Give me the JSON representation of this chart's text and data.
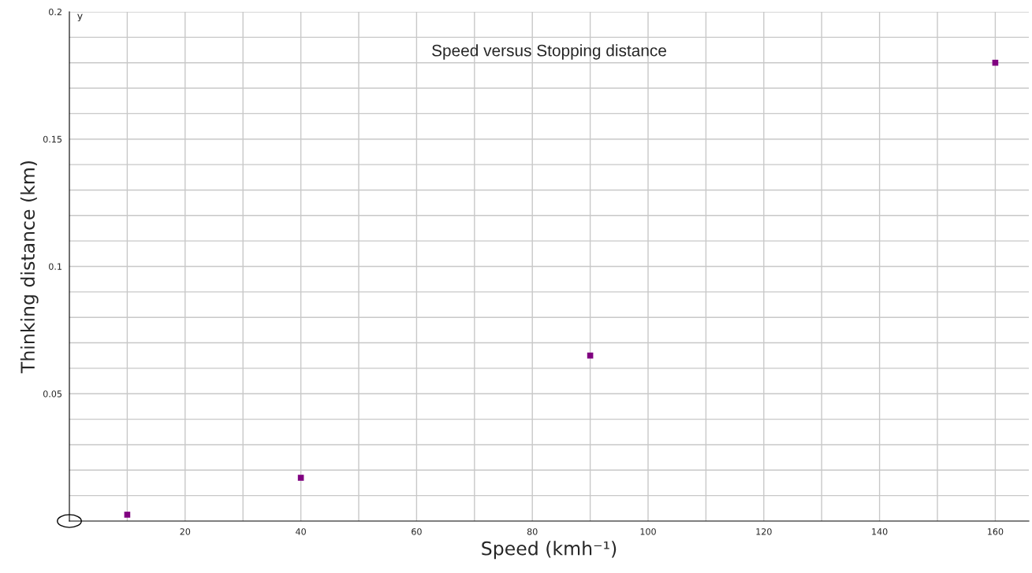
{
  "chart_data": {
    "type": "scatter",
    "title": "Speed versus Stopping distance",
    "xlabel": "Speed (kmh⁻¹)",
    "ylabel": "Thinking distance (km)",
    "annotations": [
      "y"
    ],
    "x": [
      10,
      40,
      90,
      160
    ],
    "series": [
      {
        "color": "#800080",
        "values": [
          0.0025,
          0.017,
          0.065,
          0.18
        ]
      }
    ],
    "marker": "square",
    "grid": true,
    "xlim": [
      0,
      165.8
    ],
    "ylim": [
      0,
      0.2
    ],
    "xticks": [
      {
        "value": 10,
        "label": null
      },
      20,
      {
        "value": 30,
        "label": null
      },
      40,
      {
        "value": 50,
        "label": null
      },
      60,
      {
        "value": 70,
        "label": null
      },
      80,
      {
        "value": 90,
        "label": null
      },
      100,
      {
        "value": 110,
        "label": null
      },
      120,
      {
        "value": 130,
        "label": null
      },
      140,
      {
        "value": 150,
        "label": null
      },
      160
    ],
    "yticks": [
      {
        "value": 0.01,
        "label": null
      },
      {
        "value": 0.02,
        "label": null
      },
      {
        "value": 0.03,
        "label": null
      },
      {
        "value": 0.04,
        "label": null
      },
      0.05,
      {
        "value": 0.06,
        "label": null
      },
      {
        "value": 0.07,
        "label": null
      },
      {
        "value": 0.08,
        "label": null
      },
      {
        "value": 0.09,
        "label": null
      },
      0.1,
      {
        "value": 0.11,
        "label": null
      },
      {
        "value": 0.12,
        "label": null
      },
      {
        "value": 0.13,
        "label": null
      },
      {
        "value": 0.14,
        "label": null
      },
      0.15,
      {
        "value": 0.16,
        "label": null
      },
      {
        "value": 0.17,
        "label": null
      },
      {
        "value": 0.18,
        "label": null
      },
      {
        "value": 0.19,
        "label": null
      },
      0.2
    ]
  }
}
